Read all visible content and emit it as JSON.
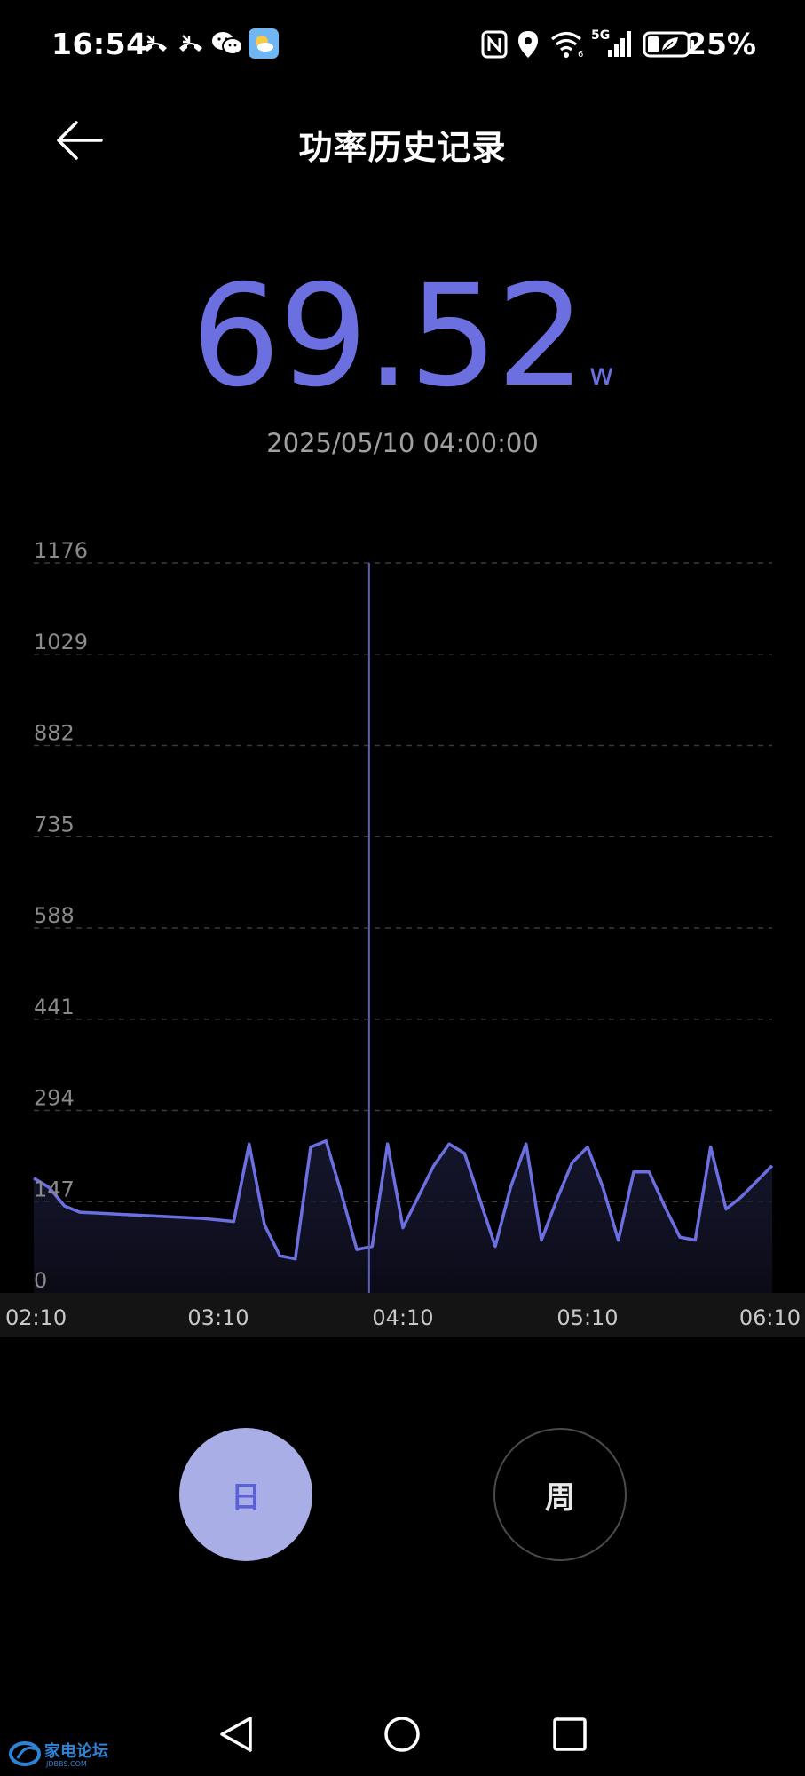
{
  "status_bar": {
    "time": "16:54",
    "battery": "25%",
    "icons": [
      "missed-call-icon",
      "missed-call-icon",
      "wechat-icon",
      "weather-icon",
      "nfc-icon",
      "location-icon",
      "wifi-icon",
      "signal-5g-icon",
      "battery-icon"
    ]
  },
  "header": {
    "title": "功率历史记录",
    "back_icon": "arrow-left-icon"
  },
  "reading": {
    "value": "69.52",
    "unit": "w",
    "timestamp": "2025/05/10 04:00:00"
  },
  "colors": {
    "accent": "#6c6fe0",
    "day_button_bg": "#a9aee6",
    "background": "#000000"
  },
  "chart_data": {
    "type": "line",
    "ylim": [
      0,
      1176
    ],
    "yticks": [
      "1176",
      "1029",
      "882",
      "735",
      "588",
      "441",
      "294",
      "147",
      "0"
    ],
    "xticks": [
      "02:10",
      "03:10",
      "04:10",
      "05:10",
      "06:10"
    ],
    "xlim_minutes_after_0210": [
      0,
      240
    ],
    "cursor_minutes_after_0210": 109,
    "grid": true,
    "series": [
      {
        "x": [
          0,
          5,
          10,
          15,
          35,
          55,
          65,
          70,
          75,
          80,
          85,
          90,
          95,
          100,
          105,
          110,
          115,
          120,
          125,
          130,
          135,
          140,
          145,
          150,
          155,
          160,
          165,
          170,
          175,
          180,
          185,
          190,
          195,
          200,
          205,
          210,
          215,
          220,
          225,
          230,
          235,
          240
        ],
        "y": [
          185,
          170,
          140,
          130,
          125,
          120,
          115,
          240,
          110,
          60,
          55,
          235,
          245,
          160,
          70,
          75,
          240,
          105,
          155,
          205,
          240,
          225,
          150,
          75,
          170,
          240,
          85,
          150,
          210,
          235,
          170,
          85,
          195,
          195,
          140,
          90,
          85,
          235,
          135,
          155,
          180,
          205
        ]
      }
    ]
  },
  "periods": {
    "day": "日",
    "week": "周"
  },
  "nav": {
    "back_icon": "nav-back-icon",
    "home_icon": "nav-home-icon",
    "recent_icon": "nav-recent-icon"
  },
  "watermark": {
    "text": "家电论坛",
    "subtext": "JDBBS.COM"
  }
}
